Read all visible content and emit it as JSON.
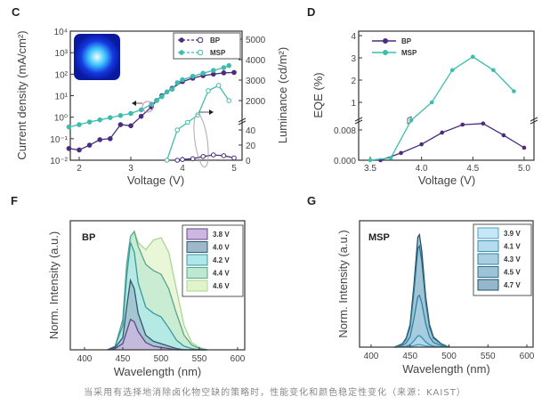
{
  "caption": "当采用有选择地消除卤化物空缺的策略时，性能变化和颜色稳定性变化（来源：KAIST）",
  "colors": {
    "BP": "#4a2c80",
    "MSP": "#3dbdad"
  },
  "chart_data": [
    {
      "panel": "C",
      "type": "line",
      "xlabel": "Voltage (V)",
      "ylabel_left": "Current density (mA/cm²)",
      "ylabel_right": "Luminance (cd/m²)",
      "x_ticks": [
        "2",
        "3",
        "4",
        "5"
      ],
      "y_left_ticks": [
        "10⁻²",
        "10⁻¹",
        "10⁰",
        "10¹",
        "10²",
        "10³",
        "10⁴"
      ],
      "y_right_ticks": [
        "0",
        "20",
        "40",
        "2000",
        "3000",
        "4000",
        "5000"
      ],
      "y_left_scale": "log",
      "y_left_range": [
        0.01,
        10000
      ],
      "y_right_range": [
        0,
        5000
      ],
      "y_right_axis_break": true,
      "legend": [
        "BP",
        "MSP"
      ],
      "legend_position": "top-right",
      "inset": "blue-emission-photo",
      "series": [
        {
          "name": "BP",
          "quantity": "current density",
          "axis": "left",
          "marker": "filled",
          "x": [
            1.8,
            2.0,
            2.2,
            2.4,
            2.6,
            2.8,
            3.0,
            3.2,
            3.4,
            3.5,
            3.6,
            3.8,
            4.0,
            4.2,
            4.4,
            4.6,
            4.8,
            5.0
          ],
          "y": [
            0.035,
            0.03,
            0.05,
            0.09,
            0.1,
            0.45,
            0.4,
            1.1,
            3,
            6,
            10,
            22,
            45,
            65,
            85,
            100,
            115,
            120
          ]
        },
        {
          "name": "MSP",
          "quantity": "current density",
          "axis": "left",
          "marker": "filled",
          "x": [
            1.8,
            2.0,
            2.2,
            2.4,
            2.6,
            2.8,
            3.0,
            3.2,
            3.4,
            3.5,
            3.6,
            3.7,
            3.8,
            3.9,
            4.0,
            4.2,
            4.4,
            4.6,
            4.8,
            4.9
          ],
          "y": [
            0.35,
            0.45,
            0.6,
            0.75,
            0.95,
            1.2,
            1.5,
            2.2,
            4,
            6,
            9,
            15,
            20,
            40,
            55,
            80,
            110,
            150,
            200,
            250
          ]
        },
        {
          "name": "BP",
          "quantity": "luminance",
          "axis": "right",
          "marker": "open",
          "x": [
            3.9,
            4.0,
            4.2,
            4.4,
            4.6,
            4.8,
            5.0
          ],
          "y": [
            0,
            1,
            2,
            5,
            7,
            6,
            3
          ]
        },
        {
          "name": "MSP",
          "quantity": "luminance",
          "axis": "right",
          "marker": "open",
          "x": [
            3.7,
            3.9,
            4.1,
            4.3,
            4.5,
            4.7,
            4.9
          ],
          "y": [
            0,
            40,
            50,
            1300,
            2480,
            2740,
            2000
          ]
        }
      ]
    },
    {
      "panel": "D",
      "type": "line",
      "xlabel": "Voltage (V)",
      "ylabel": "EQE (%)",
      "x_ticks": [
        "3.5",
        "4.0",
        "4.5",
        "5.0"
      ],
      "y_ticks": [
        "0.000",
        "0.008",
        "1",
        "2",
        "3",
        "4"
      ],
      "y_axis_break": true,
      "legend": [
        "BP",
        "MSP"
      ],
      "legend_position": "top-left",
      "series": [
        {
          "name": "BP",
          "x": [
            3.6,
            3.8,
            4.0,
            4.2,
            4.4,
            4.6,
            4.8,
            5.0
          ],
          "y": [
            0,
            0.0019,
            0.0042,
            0.0073,
            0.0094,
            0.0097,
            0.0066,
            0.0033
          ]
        },
        {
          "name": "MSP",
          "x": [
            3.5,
            3.7,
            3.9,
            4.1,
            4.3,
            4.5,
            4.7,
            4.9
          ],
          "y": [
            0,
            0.0006,
            0.2,
            1.0,
            2.45,
            3.05,
            2.45,
            1.5
          ]
        }
      ]
    },
    {
      "panel": "F",
      "type": "area",
      "title": "BP",
      "xlabel": "Wavelength (nm)",
      "ylabel": "Norm. Intensity (a.u.)",
      "x_ticks": [
        "400",
        "450",
        "500",
        "550",
        "600"
      ],
      "xlim": [
        385,
        610
      ],
      "legend_position": "top-right",
      "x": [
        430,
        440,
        450,
        455,
        460,
        465,
        470,
        480,
        490,
        500,
        510,
        520,
        530,
        540,
        550,
        560
      ],
      "series": [
        {
          "name": "3.8 V",
          "fill": "#cdb6e0",
          "stroke": "#5b4a86",
          "y": [
            0,
            0.01,
            0.05,
            0.15,
            0.25,
            0.23,
            0.15,
            0.06,
            0.03,
            0.02,
            0.01,
            0,
            0,
            0,
            0,
            0
          ]
        },
        {
          "name": "4.0 V",
          "fill": "#9db9c9",
          "stroke": "#2f5570",
          "y": [
            0,
            0.02,
            0.1,
            0.35,
            0.57,
            0.5,
            0.3,
            0.12,
            0.07,
            0.05,
            0.03,
            0.01,
            0,
            0,
            0,
            0
          ]
        },
        {
          "name": "4.2 V",
          "fill": "#aee8ea",
          "stroke": "#3a9a9c",
          "y": [
            0,
            0.03,
            0.2,
            0.6,
            0.88,
            0.8,
            0.55,
            0.35,
            0.3,
            0.27,
            0.18,
            0.08,
            0.03,
            0.01,
            0,
            0
          ]
        },
        {
          "name": "4.4 V",
          "fill": "#bde8d2",
          "stroke": "#5aa58c",
          "y": [
            0,
            0.03,
            0.25,
            0.7,
            0.93,
            0.97,
            0.85,
            0.7,
            0.65,
            0.62,
            0.5,
            0.3,
            0.12,
            0.04,
            0.01,
            0
          ]
        },
        {
          "name": "4.6 V",
          "fill": "#e1f3c9",
          "stroke": "#a9d69a",
          "y": [
            0,
            0.03,
            0.2,
            0.6,
            0.88,
            0.97,
            0.88,
            0.82,
            0.9,
            0.92,
            0.8,
            0.5,
            0.2,
            0.06,
            0.02,
            0
          ]
        }
      ]
    },
    {
      "panel": "G",
      "type": "area",
      "title": "MSP",
      "xlabel": "Wavelength (nm)",
      "ylabel": "Norm. Intensity (a.u.)",
      "x_ticks": [
        "400",
        "450",
        "500",
        "550",
        "600"
      ],
      "xlim": [
        385,
        610
      ],
      "legend_position": "top-right",
      "x": [
        430,
        440,
        445,
        450,
        455,
        460,
        462,
        465,
        470,
        475,
        480,
        490,
        500
      ],
      "series": [
        {
          "name": "3.9 V",
          "fill": "#c6e8f6",
          "stroke": "#4aa0c4",
          "y": [
            0,
            0.001,
            0.002,
            0.004,
            0.011,
            0.02,
            0.02,
            0.017,
            0.009,
            0.004,
            0.002,
            0.001,
            0
          ]
        },
        {
          "name": "4.1 V",
          "fill": "#b4dcee",
          "stroke": "#3d8fb4",
          "y": [
            0,
            0.003,
            0.007,
            0.018,
            0.05,
            0.088,
            0.09,
            0.077,
            0.041,
            0.018,
            0.008,
            0.003,
            0
          ]
        },
        {
          "name": "4.3 V",
          "fill": "#a8cfe2",
          "stroke": "#33809f",
          "y": [
            0,
            0.012,
            0.033,
            0.082,
            0.226,
            0.4,
            0.41,
            0.35,
            0.185,
            0.082,
            0.037,
            0.012,
            0
          ]
        },
        {
          "name": "4.5 V",
          "fill": "#9cc3d6",
          "stroke": "#2b6f8c",
          "y": [
            0,
            0.024,
            0.064,
            0.16,
            0.44,
            0.78,
            0.8,
            0.68,
            0.36,
            0.16,
            0.072,
            0.024,
            0
          ]
        },
        {
          "name": "4.7 V",
          "fill": "#93b7cb",
          "stroke": "#244f66",
          "y": [
            0,
            0.027,
            0.071,
            0.178,
            0.49,
            0.87,
            0.89,
            0.76,
            0.4,
            0.178,
            0.08,
            0.027,
            0
          ]
        }
      ]
    }
  ]
}
